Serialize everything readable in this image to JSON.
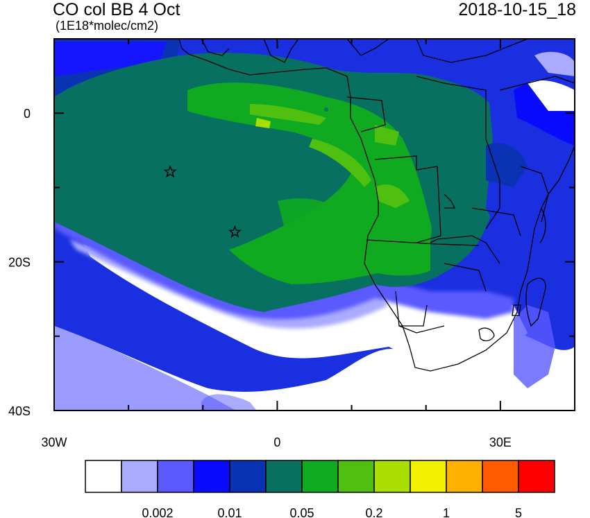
{
  "title": "CO col BB 4 Oct",
  "subtitle": "(1E18*molec/cm2)",
  "timestamp": "2018-10-15_18",
  "map": {
    "lon_range": [
      -30,
      40
    ],
    "lat_range": [
      -40,
      10
    ],
    "x_ticks": [
      {
        "lon": -30,
        "label": "30W"
      },
      {
        "lon": 0,
        "label": "0"
      },
      {
        "lon": 30,
        "label": "30E"
      }
    ],
    "y_ticks": [
      {
        "lat": 0,
        "label": "0"
      },
      {
        "lat": -20,
        "label": "20S"
      },
      {
        "lat": -40,
        "label": "40S"
      }
    ],
    "markers": [
      {
        "type": "star",
        "lon": -14.4,
        "lat": -7.9
      },
      {
        "type": "star",
        "lon": -5.7,
        "lat": -16.0
      }
    ]
  },
  "colorbar": {
    "colors": [
      "#ffffff",
      "#aaaaff",
      "#5a5aff",
      "#0a0aff",
      "#0a32b4",
      "#087060",
      "#10aa20",
      "#50c010",
      "#aade00",
      "#f0f000",
      "#ffb000",
      "#ff5a00",
      "#ff0000"
    ],
    "labels": [
      {
        "after_box": 2,
        "text": "0.002"
      },
      {
        "after_box": 4,
        "text": "0.01"
      },
      {
        "after_box": 6,
        "text": "0.05"
      },
      {
        "after_box": 8,
        "text": "0.2"
      },
      {
        "after_box": 10,
        "text": "1"
      },
      {
        "after_box": 12,
        "text": "5"
      }
    ]
  }
}
